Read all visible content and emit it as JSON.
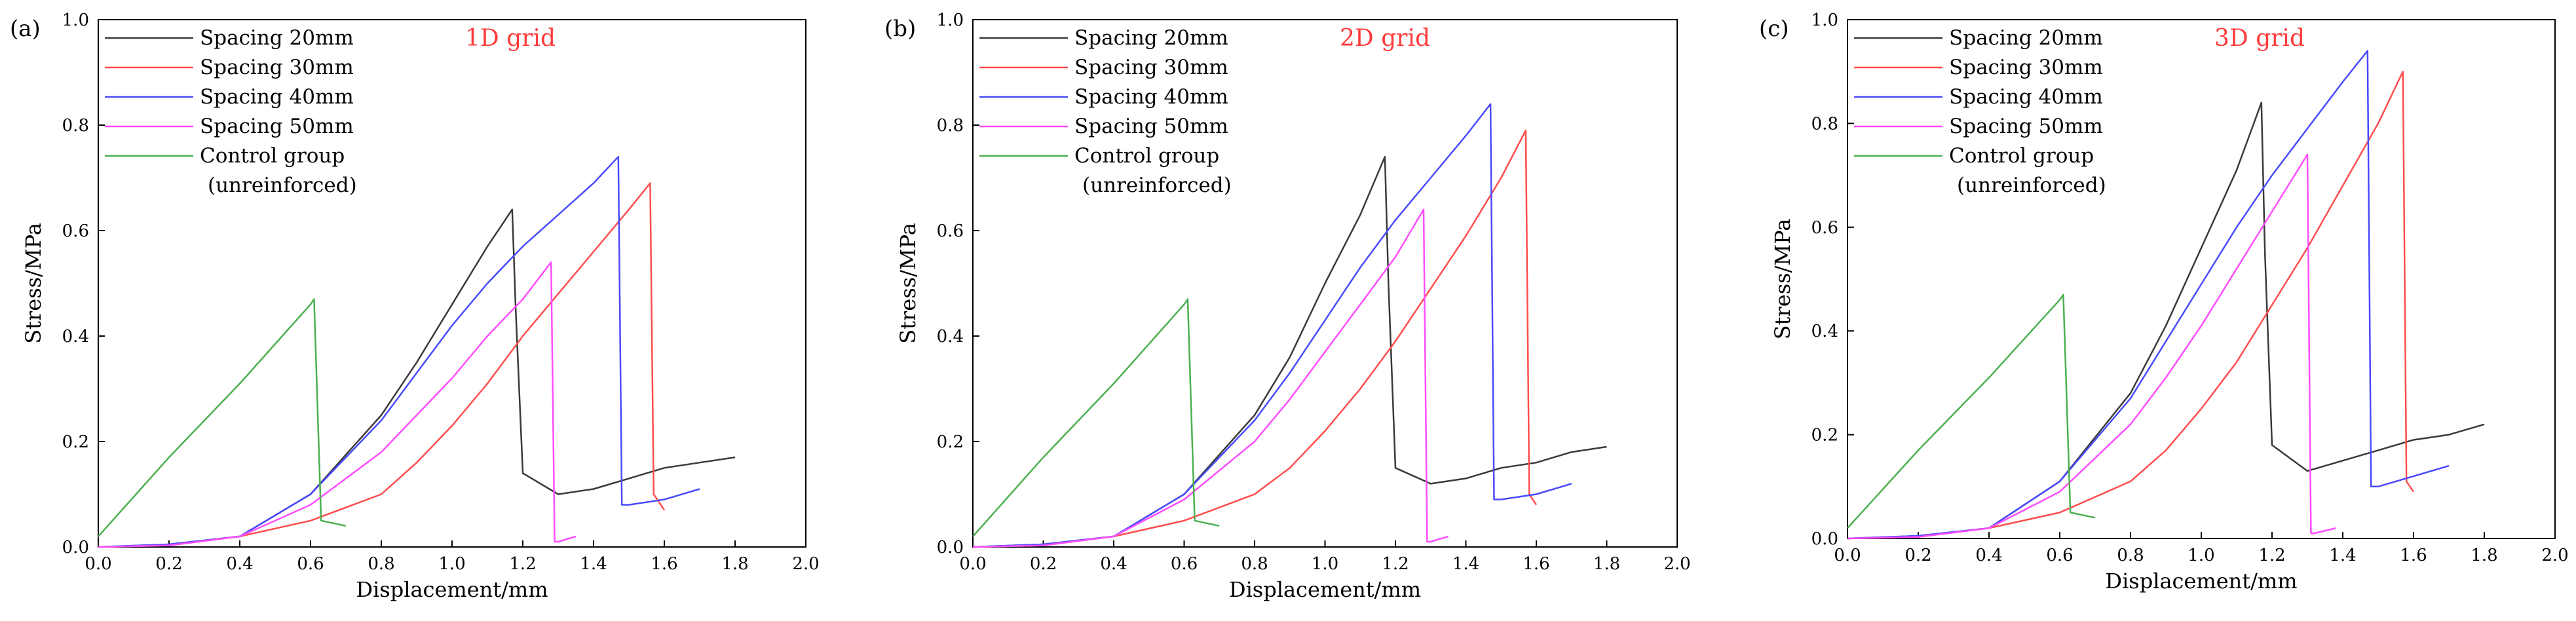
{
  "chart_data": [
    {
      "type": "line",
      "panel_label": "(a)",
      "title": "1D grid",
      "title_color": "#ff3b3b",
      "xlabel": "Displacement/mm",
      "ylabel": "Stress/MPa",
      "xlim": [
        0,
        2.0
      ],
      "ylim": [
        0,
        1.0
      ],
      "xticks": [
        "0.0",
        "0.2",
        "0.4",
        "0.6",
        "0.8",
        "1.0",
        "1.2",
        "1.4",
        "1.6",
        "1.8",
        "2.0"
      ],
      "yticks": [
        "0.0",
        "0.2",
        "0.4",
        "0.6",
        "0.8",
        "1.0"
      ],
      "legend_note": "(unreinforced)",
      "series": [
        {
          "name": "Spacing 20mm",
          "color": "#3a3a3a",
          "x": [
            0,
            0.2,
            0.4,
            0.6,
            0.8,
            0.9,
            1.0,
            1.1,
            1.17,
            1.18,
            1.2,
            1.3,
            1.4,
            1.5,
            1.6,
            1.7,
            1.8
          ],
          "y": [
            0,
            0.005,
            0.02,
            0.1,
            0.25,
            0.35,
            0.46,
            0.57,
            0.64,
            0.45,
            0.14,
            0.1,
            0.11,
            0.13,
            0.15,
            0.16,
            0.17
          ]
        },
        {
          "name": "Spacing 30mm",
          "color": "#ff4d4d",
          "x": [
            0,
            0.2,
            0.4,
            0.6,
            0.8,
            0.9,
            1.0,
            1.1,
            1.2,
            1.3,
            1.4,
            1.5,
            1.56,
            1.57,
            1.6
          ],
          "y": [
            0,
            0.003,
            0.02,
            0.05,
            0.1,
            0.16,
            0.23,
            0.31,
            0.4,
            0.48,
            0.56,
            0.64,
            0.69,
            0.1,
            0.07
          ]
        },
        {
          "name": "Spacing 40mm",
          "color": "#4a4aff",
          "x": [
            0,
            0.2,
            0.4,
            0.6,
            0.8,
            0.9,
            1.0,
            1.1,
            1.2,
            1.3,
            1.4,
            1.47,
            1.48,
            1.5,
            1.6,
            1.7
          ],
          "y": [
            0,
            0.005,
            0.02,
            0.1,
            0.24,
            0.33,
            0.42,
            0.5,
            0.57,
            0.63,
            0.69,
            0.74,
            0.08,
            0.08,
            0.09,
            0.11
          ]
        },
        {
          "name": "Spacing 50mm",
          "color": "#ff4dff",
          "x": [
            0,
            0.2,
            0.4,
            0.6,
            0.8,
            0.9,
            1.0,
            1.1,
            1.2,
            1.28,
            1.29,
            1.3,
            1.35
          ],
          "y": [
            0,
            0.003,
            0.02,
            0.08,
            0.18,
            0.25,
            0.32,
            0.4,
            0.47,
            0.54,
            0.01,
            0.01,
            0.02
          ]
        },
        {
          "name": "Control group",
          "color": "#4caf50",
          "x": [
            0,
            0.2,
            0.4,
            0.6,
            0.61,
            0.63,
            0.7
          ],
          "y": [
            0.02,
            0.17,
            0.31,
            0.46,
            0.47,
            0.05,
            0.04
          ]
        }
      ]
    },
    {
      "type": "line",
      "panel_label": "(b)",
      "title": "2D grid",
      "title_color": "#ff3b3b",
      "xlabel": "Displacement/mm",
      "ylabel": "Stress/MPa",
      "xlim": [
        0,
        2.0
      ],
      "ylim": [
        0,
        1.0
      ],
      "xticks": [
        "0.0",
        "0.2",
        "0.4",
        "0.6",
        "0.8",
        "1.0",
        "1.2",
        "1.4",
        "1.6",
        "1.8",
        "2.0"
      ],
      "yticks": [
        "0.0",
        "0.2",
        "0.4",
        "0.6",
        "0.8",
        "1.0"
      ],
      "legend_note": "(unreinforced)",
      "series": [
        {
          "name": "Spacing 20mm",
          "color": "#3a3a3a",
          "x": [
            0,
            0.2,
            0.4,
            0.6,
            0.8,
            0.9,
            1.0,
            1.1,
            1.17,
            1.18,
            1.2,
            1.3,
            1.4,
            1.5,
            1.6,
            1.7,
            1.8
          ],
          "y": [
            0,
            0.005,
            0.02,
            0.1,
            0.25,
            0.36,
            0.5,
            0.63,
            0.74,
            0.5,
            0.15,
            0.12,
            0.13,
            0.15,
            0.16,
            0.18,
            0.19
          ]
        },
        {
          "name": "Spacing 30mm",
          "color": "#ff4d4d",
          "x": [
            0,
            0.2,
            0.4,
            0.6,
            0.8,
            0.9,
            1.0,
            1.1,
            1.2,
            1.3,
            1.4,
            1.5,
            1.57,
            1.58,
            1.6
          ],
          "y": [
            0,
            0.003,
            0.02,
            0.05,
            0.1,
            0.15,
            0.22,
            0.3,
            0.39,
            0.49,
            0.59,
            0.7,
            0.79,
            0.1,
            0.08
          ]
        },
        {
          "name": "Spacing 40mm",
          "color": "#4a4aff",
          "x": [
            0,
            0.2,
            0.4,
            0.6,
            0.8,
            0.9,
            1.0,
            1.1,
            1.2,
            1.3,
            1.4,
            1.47,
            1.48,
            1.5,
            1.6,
            1.7
          ],
          "y": [
            0,
            0.005,
            0.02,
            0.1,
            0.24,
            0.33,
            0.43,
            0.53,
            0.62,
            0.7,
            0.78,
            0.84,
            0.09,
            0.09,
            0.1,
            0.12
          ]
        },
        {
          "name": "Spacing 50mm",
          "color": "#ff4dff",
          "x": [
            0,
            0.2,
            0.4,
            0.6,
            0.8,
            0.9,
            1.0,
            1.1,
            1.2,
            1.28,
            1.29,
            1.3,
            1.35
          ],
          "y": [
            0,
            0.003,
            0.02,
            0.09,
            0.2,
            0.28,
            0.37,
            0.46,
            0.55,
            0.64,
            0.01,
            0.01,
            0.02
          ]
        },
        {
          "name": "Control group",
          "color": "#4caf50",
          "x": [
            0,
            0.2,
            0.4,
            0.6,
            0.61,
            0.63,
            0.7
          ],
          "y": [
            0.02,
            0.17,
            0.31,
            0.46,
            0.47,
            0.05,
            0.04
          ]
        }
      ]
    },
    {
      "type": "line",
      "panel_label": "(c)",
      "title": "3D grid",
      "title_color": "#ff3b3b",
      "xlabel": "Displacement/mm",
      "ylabel": "Stress/MPa",
      "xlim": [
        0,
        2.0
      ],
      "ylim": [
        0,
        1.0
      ],
      "xticks": [
        "0.0",
        "0.2",
        "0.4",
        "0.6",
        "0.8",
        "1.0",
        "1.2",
        "1.4",
        "1.6",
        "1.8",
        "2.0"
      ],
      "yticks": [
        "0.0",
        "0.2",
        "0.4",
        "0.6",
        "0.8",
        "1.0"
      ],
      "legend_note": "(unreinforced)",
      "series": [
        {
          "name": "Spacing 20mm",
          "color": "#3a3a3a",
          "x": [
            0,
            0.2,
            0.4,
            0.6,
            0.8,
            0.9,
            1.0,
            1.1,
            1.17,
            1.18,
            1.2,
            1.3,
            1.4,
            1.5,
            1.6,
            1.7,
            1.8
          ],
          "y": [
            0,
            0.005,
            0.02,
            0.11,
            0.28,
            0.41,
            0.56,
            0.71,
            0.84,
            0.55,
            0.18,
            0.13,
            0.15,
            0.17,
            0.19,
            0.2,
            0.22
          ]
        },
        {
          "name": "Spacing 30mm",
          "color": "#ff4d4d",
          "x": [
            0,
            0.2,
            0.4,
            0.6,
            0.8,
            0.9,
            1.0,
            1.1,
            1.2,
            1.3,
            1.4,
            1.5,
            1.57,
            1.58,
            1.6
          ],
          "y": [
            0,
            0.003,
            0.02,
            0.05,
            0.11,
            0.17,
            0.25,
            0.34,
            0.45,
            0.56,
            0.68,
            0.8,
            0.9,
            0.11,
            0.09
          ]
        },
        {
          "name": "Spacing 40mm",
          "color": "#4a4aff",
          "x": [
            0,
            0.2,
            0.4,
            0.6,
            0.8,
            0.9,
            1.0,
            1.1,
            1.2,
            1.3,
            1.4,
            1.47,
            1.48,
            1.5,
            1.6,
            1.7
          ],
          "y": [
            0,
            0.005,
            0.02,
            0.11,
            0.27,
            0.38,
            0.49,
            0.6,
            0.7,
            0.79,
            0.88,
            0.94,
            0.1,
            0.1,
            0.12,
            0.14
          ]
        },
        {
          "name": "Spacing 50mm",
          "color": "#ff4dff",
          "x": [
            0,
            0.2,
            0.4,
            0.6,
            0.8,
            0.9,
            1.0,
            1.1,
            1.2,
            1.3,
            1.31,
            1.32,
            1.38
          ],
          "y": [
            0,
            0.003,
            0.02,
            0.09,
            0.22,
            0.31,
            0.41,
            0.52,
            0.63,
            0.74,
            0.01,
            0.01,
            0.02
          ]
        },
        {
          "name": "Control group",
          "color": "#4caf50",
          "x": [
            0,
            0.2,
            0.4,
            0.6,
            0.61,
            0.63,
            0.7
          ],
          "y": [
            0.02,
            0.17,
            0.31,
            0.46,
            0.47,
            0.05,
            0.04
          ]
        }
      ]
    }
  ]
}
